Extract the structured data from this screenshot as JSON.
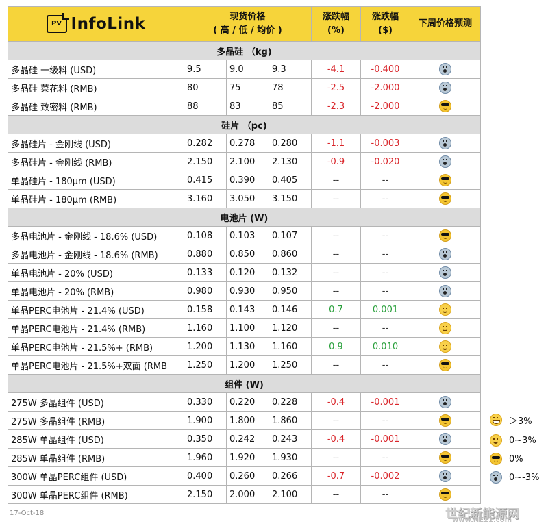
{
  "header": {
    "logo_text": "InfoLink",
    "logo_badge": "PV",
    "spot_price_label": "现货价格",
    "spot_price_sub": "( 高 / 低 / 均价 )",
    "change_pct_label": "涨跌幅",
    "change_pct_unit": "(%)",
    "change_usd_label": "涨跌幅",
    "change_usd_unit": "($)",
    "forecast_label": "下周价格预测"
  },
  "sections": [
    {
      "title": "多晶硅 （kg)",
      "rows": [
        {
          "name": "多晶硅 一级料 (USD)",
          "high": "9.5",
          "low": "9.0",
          "avg": "9.3",
          "pct": "-4.1",
          "usd": "-0.400",
          "trend": "neg",
          "forecast": "shock-icon"
        },
        {
          "name": "多晶硅 菜花料 (RMB)",
          "high": "80",
          "low": "75",
          "avg": "78",
          "pct": "-2.5",
          "usd": "-2.000",
          "trend": "neg",
          "forecast": "shock-icon"
        },
        {
          "name": "多晶硅 致密料 (RMB)",
          "high": "88",
          "low": "83",
          "avg": "85",
          "pct": "-2.3",
          "usd": "-2.000",
          "trend": "neg",
          "forecast": "cool-icon"
        }
      ]
    },
    {
      "title": "硅片 （pc)",
      "rows": [
        {
          "name": "多晶硅片 - 金刚线 (USD)",
          "high": "0.282",
          "low": "0.278",
          "avg": "0.280",
          "pct": "-1.1",
          "usd": "-0.003",
          "trend": "neg",
          "forecast": "shock-icon"
        },
        {
          "name": "多晶硅片 - 金刚线 (RMB)",
          "high": "2.150",
          "low": "2.100",
          "avg": "2.130",
          "pct": "-0.9",
          "usd": "-0.020",
          "trend": "neg",
          "forecast": "shock-icon"
        },
        {
          "name": "单晶硅片 - 180µm (USD)",
          "high": "0.415",
          "low": "0.390",
          "avg": "0.405",
          "pct": "--",
          "usd": "--",
          "trend": "flat",
          "forecast": "cool-icon"
        },
        {
          "name": "单晶硅片 - 180µm (RMB)",
          "high": "3.160",
          "low": "3.050",
          "avg": "3.150",
          "pct": "--",
          "usd": "--",
          "trend": "flat",
          "forecast": "cool-icon"
        }
      ]
    },
    {
      "title": "电池片 (W)",
      "rows": [
        {
          "name": "多晶电池片 - 金刚线 - 18.6% (USD)",
          "high": "0.108",
          "low": "0.103",
          "avg": "0.107",
          "pct": "--",
          "usd": "--",
          "trend": "flat",
          "forecast": "cool-icon"
        },
        {
          "name": "多晶电池片 - 金刚线 - 18.6% (RMB)",
          "high": "0.880",
          "low": "0.850",
          "avg": "0.860",
          "pct": "--",
          "usd": "--",
          "trend": "flat",
          "forecast": "shock-icon"
        },
        {
          "name": "单晶电池片 - 20% (USD)",
          "high": "0.133",
          "low": "0.120",
          "avg": "0.132",
          "pct": "--",
          "usd": "--",
          "trend": "flat",
          "forecast": "shock-icon"
        },
        {
          "name": "单晶电池片 - 20% (RMB)",
          "high": "0.980",
          "low": "0.930",
          "avg": "0.950",
          "pct": "--",
          "usd": "--",
          "trend": "flat",
          "forecast": "shock-icon"
        },
        {
          "name": "单晶PERC电池片 - 21.4% (USD)",
          "high": "0.158",
          "low": "0.143",
          "avg": "0.146",
          "pct": "0.7",
          "usd": "0.001",
          "trend": "pos",
          "forecast": "smile-icon"
        },
        {
          "name": "单晶PERC电池片 - 21.4% (RMB)",
          "high": "1.160",
          "low": "1.100",
          "avg": "1.120",
          "pct": "--",
          "usd": "--",
          "trend": "flat",
          "forecast": "smile-icon"
        },
        {
          "name": "单晶PERC电池片 - 21.5%+ (RMB)",
          "high": "1.200",
          "low": "1.130",
          "avg": "1.160",
          "pct": "0.9",
          "usd": "0.010",
          "trend": "pos",
          "forecast": "smile-icon"
        },
        {
          "name": "单晶PERC电池片 - 21.5%+双面 (RMB",
          "high": "1.250",
          "low": "1.200",
          "avg": "1.250",
          "pct": "--",
          "usd": "--",
          "trend": "flat",
          "forecast": "cool-icon"
        }
      ]
    },
    {
      "title": "组件 (W)",
      "rows": [
        {
          "name": "275W 多晶组件 (USD)",
          "high": "0.330",
          "low": "0.220",
          "avg": "0.228",
          "pct": "-0.4",
          "usd": "-0.001",
          "trend": "neg",
          "forecast": "shock-icon"
        },
        {
          "name": "275W 多晶组件 (RMB)",
          "high": "1.900",
          "low": "1.800",
          "avg": "1.860",
          "pct": "--",
          "usd": "--",
          "trend": "flat",
          "forecast": "cool-icon"
        },
        {
          "name": "285W 单晶组件 (USD)",
          "high": "0.350",
          "low": "0.242",
          "avg": "0.243",
          "pct": "-0.4",
          "usd": "-0.001",
          "trend": "neg",
          "forecast": "shock-icon"
        },
        {
          "name": "285W 单晶组件 (RMB)",
          "high": "1.960",
          "low": "1.920",
          "avg": "1.930",
          "pct": "--",
          "usd": "--",
          "trend": "flat",
          "forecast": "cool-icon"
        },
        {
          "name": "300W 单晶PERC组件 (USD)",
          "high": "0.400",
          "low": "0.260",
          "avg": "0.266",
          "pct": "-0.7",
          "usd": "-0.002",
          "trend": "neg",
          "forecast": "shock-icon"
        },
        {
          "name": "300W 单晶PERC组件 (RMB)",
          "high": "2.150",
          "low": "2.000",
          "avg": "2.100",
          "pct": "--",
          "usd": "--",
          "trend": "flat",
          "forecast": "cool-icon"
        }
      ]
    }
  ],
  "legend": [
    {
      "icon": "grin-icon",
      "label": "＞3%"
    },
    {
      "icon": "smile-icon",
      "label": "0~3%"
    },
    {
      "icon": "cool-icon",
      "label": "0%"
    },
    {
      "icon": "shock-icon",
      "label": "0~-3%"
    }
  ],
  "footer": {
    "date": "17-Oct-18"
  },
  "watermark": {
    "text": "世纪新能源网",
    "url": "www.NE21.com"
  },
  "colors": {
    "header_bg": "#f6d43a",
    "section_bg": "#dcdcdc",
    "negative": "#d9262b",
    "positive": "#2aa03c"
  }
}
